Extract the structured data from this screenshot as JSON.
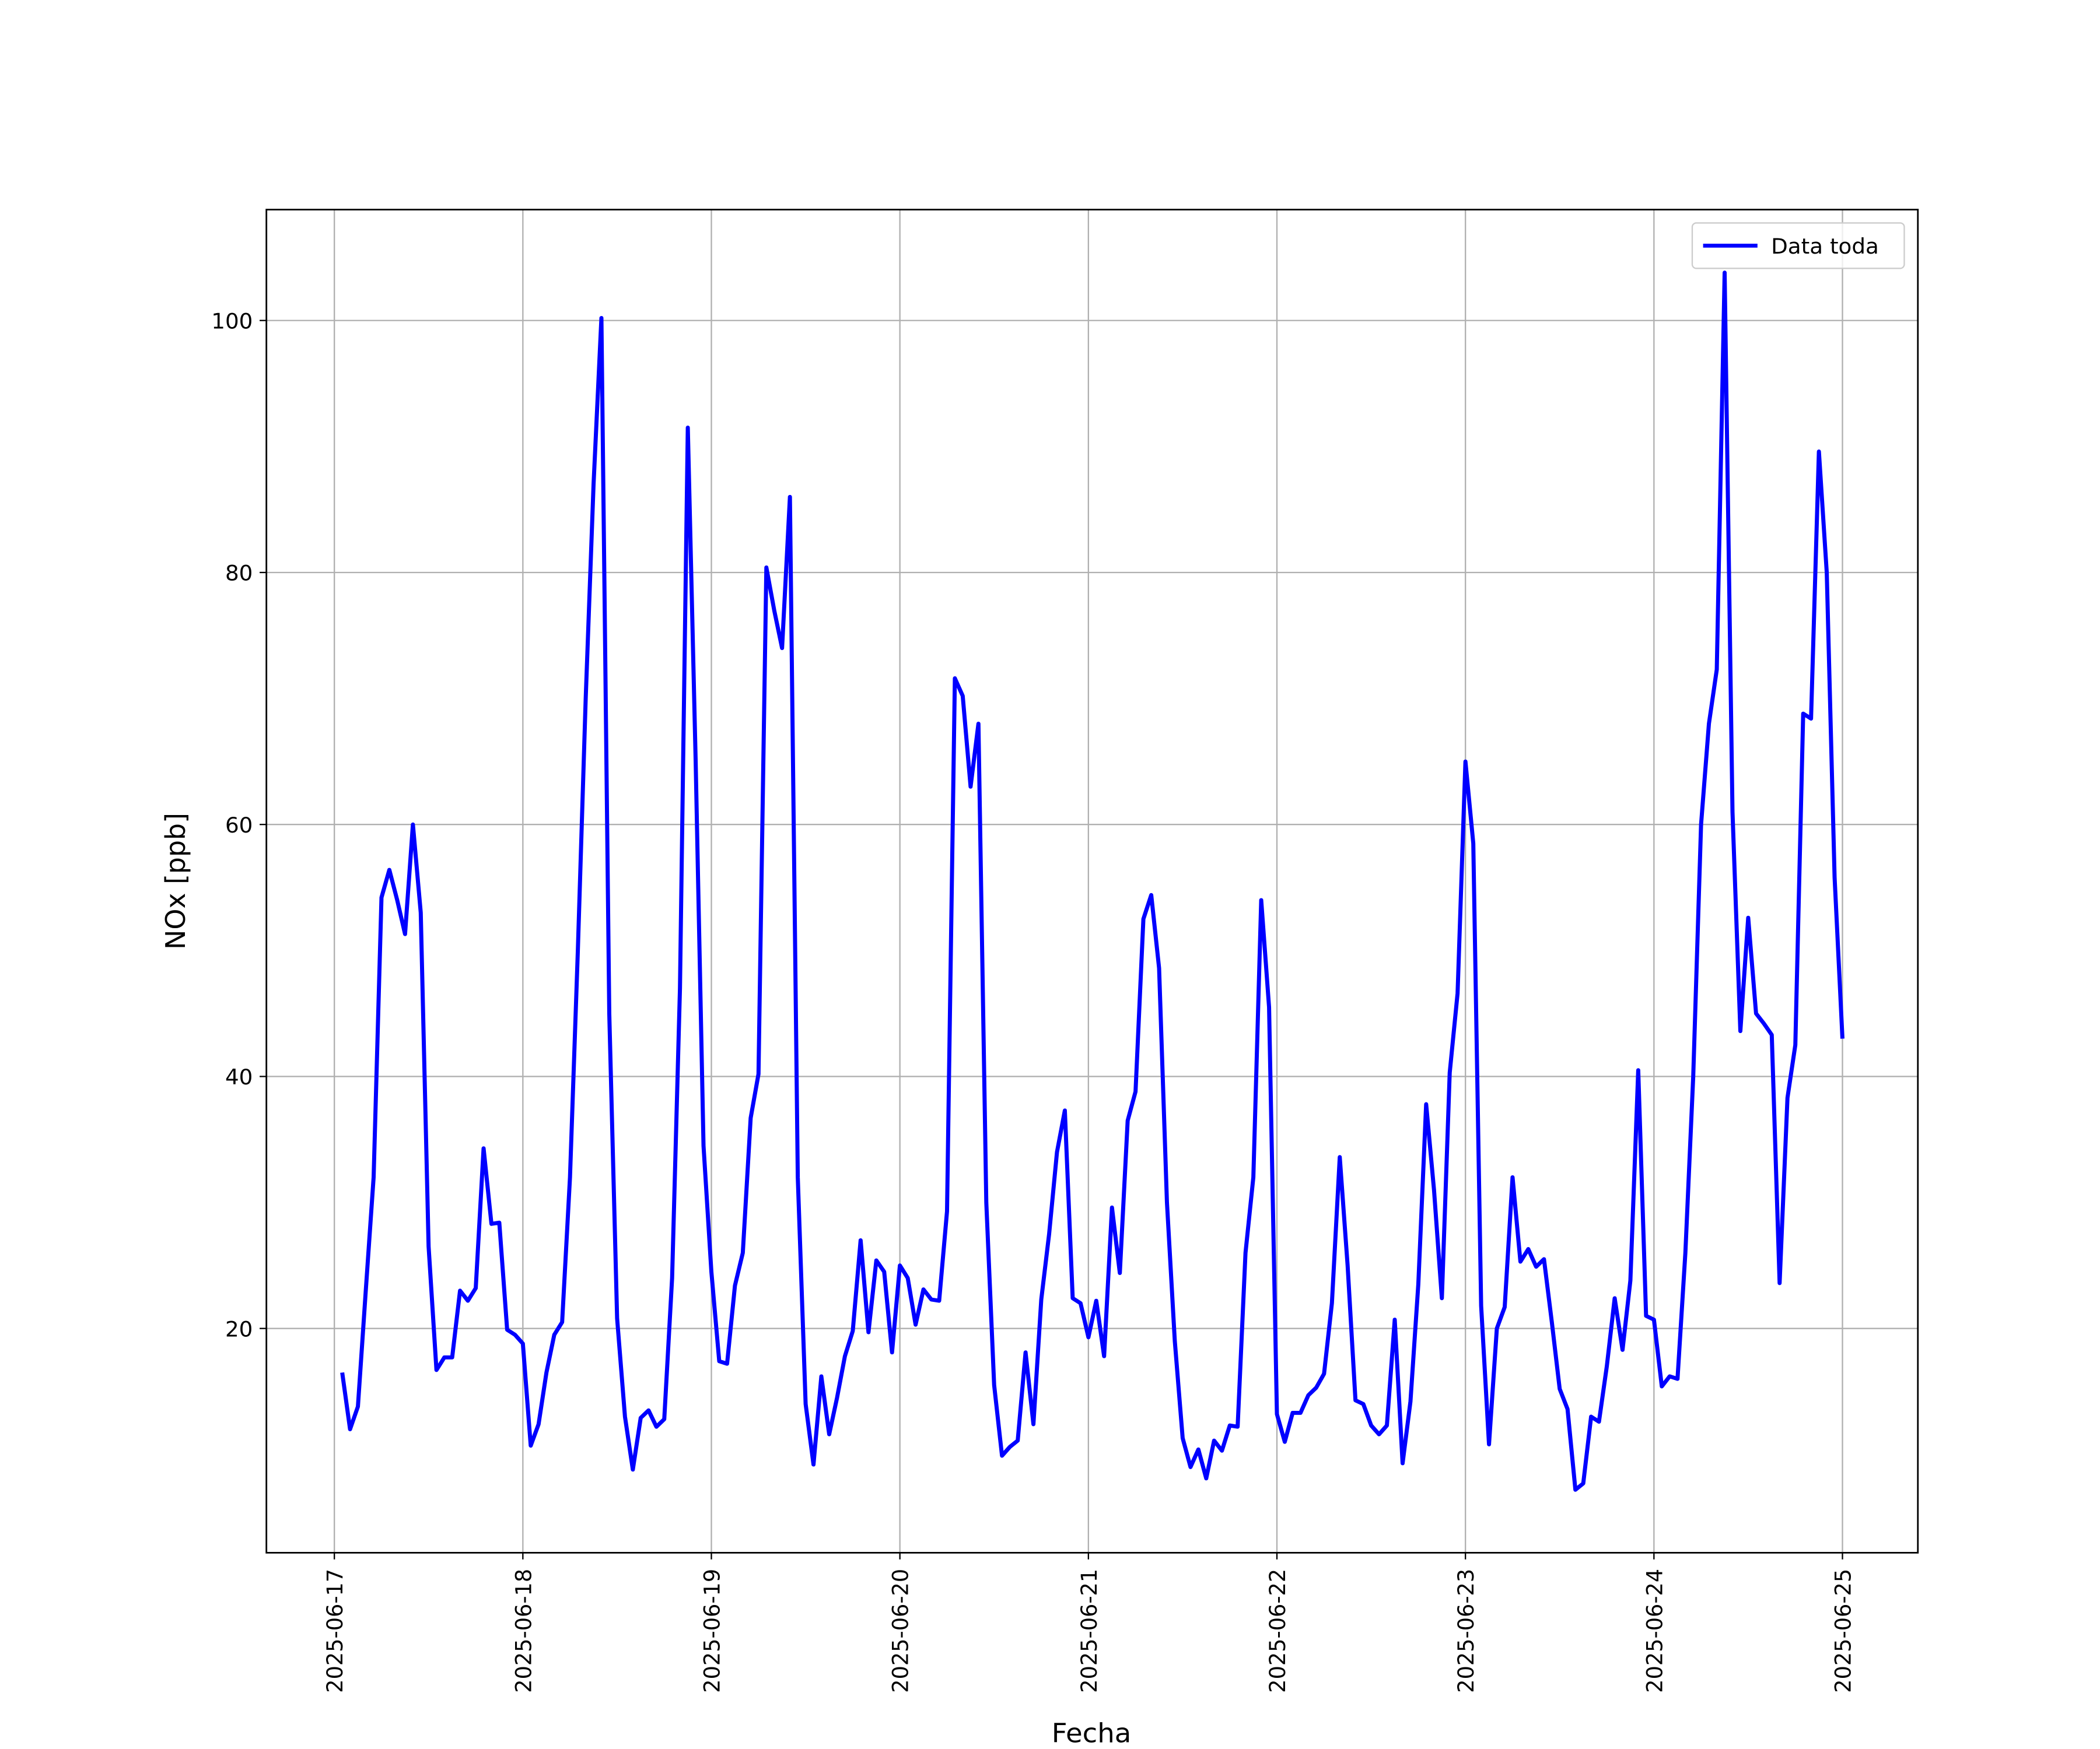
{
  "chart_data": {
    "type": "line",
    "x_label": "Fecha",
    "y_label": "NOx [ppb]",
    "legend": "upper right",
    "grid": true,
    "x": [
      "2025-06-17 01:00",
      "2025-06-17 02:00",
      "2025-06-17 03:00",
      "2025-06-17 04:00",
      "2025-06-17 05:00",
      "2025-06-17 06:00",
      "2025-06-17 07:00",
      "2025-06-17 08:00",
      "2025-06-17 09:00",
      "2025-06-17 10:00",
      "2025-06-17 11:00",
      "2025-06-17 12:00",
      "2025-06-17 13:00",
      "2025-06-17 14:00",
      "2025-06-17 15:00",
      "2025-06-17 16:00",
      "2025-06-17 17:00",
      "2025-06-17 18:00",
      "2025-06-17 19:00",
      "2025-06-17 20:00",
      "2025-06-17 21:00",
      "2025-06-17 22:00",
      "2025-06-17 23:00",
      "2025-06-18 00:00",
      "2025-06-18 01:00",
      "2025-06-18 02:00",
      "2025-06-18 03:00",
      "2025-06-18 04:00",
      "2025-06-18 05:00",
      "2025-06-18 06:00",
      "2025-06-18 07:00",
      "2025-06-18 08:00",
      "2025-06-18 09:00",
      "2025-06-18 10:00",
      "2025-06-18 11:00",
      "2025-06-18 12:00",
      "2025-06-18 13:00",
      "2025-06-18 14:00",
      "2025-06-18 15:00",
      "2025-06-18 16:00",
      "2025-06-18 17:00",
      "2025-06-18 18:00",
      "2025-06-18 19:00",
      "2025-06-18 20:00",
      "2025-06-18 21:00",
      "2025-06-18 22:00",
      "2025-06-18 23:00",
      "2025-06-19 00:00",
      "2025-06-19 01:00",
      "2025-06-19 02:00",
      "2025-06-19 03:00",
      "2025-06-19 04:00",
      "2025-06-19 05:00",
      "2025-06-19 06:00",
      "2025-06-19 07:00",
      "2025-06-19 08:00",
      "2025-06-19 09:00",
      "2025-06-19 10:00",
      "2025-06-19 11:00",
      "2025-06-19 12:00",
      "2025-06-19 13:00",
      "2025-06-19 14:00",
      "2025-06-19 15:00",
      "2025-06-19 16:00",
      "2025-06-19 17:00",
      "2025-06-19 18:00",
      "2025-06-19 19:00",
      "2025-06-19 20:00",
      "2025-06-19 21:00",
      "2025-06-19 22:00",
      "2025-06-19 23:00",
      "2025-06-20 00:00",
      "2025-06-20 01:00",
      "2025-06-20 02:00",
      "2025-06-20 03:00",
      "2025-06-20 04:00",
      "2025-06-20 05:00",
      "2025-06-20 06:00",
      "2025-06-20 07:00",
      "2025-06-20 08:00",
      "2025-06-20 09:00",
      "2025-06-20 10:00",
      "2025-06-20 11:00",
      "2025-06-20 12:00",
      "2025-06-20 13:00",
      "2025-06-20 14:00",
      "2025-06-20 15:00",
      "2025-06-20 16:00",
      "2025-06-20 17:00",
      "2025-06-20 18:00",
      "2025-06-20 19:00",
      "2025-06-20 20:00",
      "2025-06-20 21:00",
      "2025-06-20 22:00",
      "2025-06-20 23:00",
      "2025-06-21 00:00",
      "2025-06-21 01:00",
      "2025-06-21 02:00",
      "2025-06-21 03:00",
      "2025-06-21 04:00",
      "2025-06-21 05:00",
      "2025-06-21 06:00",
      "2025-06-21 07:00",
      "2025-06-21 08:00",
      "2025-06-21 09:00",
      "2025-06-21 10:00",
      "2025-06-21 11:00",
      "2025-06-21 12:00",
      "2025-06-21 13:00",
      "2025-06-21 14:00",
      "2025-06-21 15:00",
      "2025-06-21 16:00",
      "2025-06-21 17:00",
      "2025-06-21 18:00",
      "2025-06-21 19:00",
      "2025-06-21 20:00",
      "2025-06-21 21:00",
      "2025-06-21 22:00",
      "2025-06-21 23:00",
      "2025-06-22 00:00",
      "2025-06-22 01:00",
      "2025-06-22 02:00",
      "2025-06-22 03:00",
      "2025-06-22 04:00",
      "2025-06-22 05:00",
      "2025-06-22 06:00",
      "2025-06-22 07:00",
      "2025-06-22 08:00",
      "2025-06-22 09:00",
      "2025-06-22 10:00",
      "2025-06-22 11:00",
      "2025-06-22 12:00",
      "2025-06-22 13:00",
      "2025-06-22 14:00",
      "2025-06-22 15:00",
      "2025-06-22 16:00",
      "2025-06-22 17:00",
      "2025-06-22 18:00",
      "2025-06-22 19:00",
      "2025-06-22 20:00",
      "2025-06-22 21:00",
      "2025-06-22 22:00",
      "2025-06-22 23:00",
      "2025-06-23 00:00",
      "2025-06-23 01:00",
      "2025-06-23 02:00",
      "2025-06-23 03:00",
      "2025-06-23 04:00",
      "2025-06-23 05:00",
      "2025-06-23 06:00",
      "2025-06-23 07:00",
      "2025-06-23 08:00",
      "2025-06-23 09:00",
      "2025-06-23 10:00",
      "2025-06-23 11:00",
      "2025-06-23 12:00",
      "2025-06-23 13:00",
      "2025-06-23 14:00",
      "2025-06-23 15:00",
      "2025-06-23 16:00",
      "2025-06-23 17:00",
      "2025-06-23 18:00",
      "2025-06-23 19:00",
      "2025-06-23 20:00",
      "2025-06-23 21:00",
      "2025-06-23 22:00",
      "2025-06-23 23:00",
      "2025-06-24 00:00",
      "2025-06-24 01:00",
      "2025-06-24 02:00",
      "2025-06-24 03:00",
      "2025-06-24 04:00",
      "2025-06-24 05:00",
      "2025-06-24 06:00",
      "2025-06-24 07:00",
      "2025-06-24 08:00",
      "2025-06-24 09:00",
      "2025-06-24 10:00",
      "2025-06-24 11:00",
      "2025-06-24 12:00",
      "2025-06-24 13:00",
      "2025-06-24 14:00",
      "2025-06-24 15:00",
      "2025-06-24 16:00",
      "2025-06-24 17:00",
      "2025-06-24 18:00",
      "2025-06-24 19:00",
      "2025-06-24 20:00",
      "2025-06-24 21:00",
      "2025-06-24 22:00",
      "2025-06-24 23:00",
      "2025-06-25 00:00"
    ],
    "series": [
      {
        "name": "Data toda",
        "color": "#0000ff",
        "values": [
          16.5,
          12,
          13.8,
          23,
          32,
          54.2,
          56.4,
          54,
          51.3,
          60,
          53,
          26.5,
          16.7,
          17.7,
          17.7,
          23,
          22.2,
          23.2,
          34.3,
          28.3,
          28.4,
          19.9,
          19.5,
          18.8,
          10.7,
          12.4,
          16.5,
          19.5,
          20.5,
          32,
          50,
          70,
          87,
          100.2,
          45,
          20.8,
          13,
          8.8,
          12.9,
          13.5,
          12.2,
          12.8,
          24,
          47,
          91.5,
          65,
          34.5,
          24.5,
          17.4,
          17.2,
          23.4,
          26,
          36.7,
          40.2,
          80.4,
          77,
          74,
          86,
          32,
          14,
          9.2,
          16.2,
          11.6,
          14.5,
          17.8,
          19.8,
          27,
          19.7,
          25.4,
          24.5,
          18.1,
          25,
          24,
          20.3,
          23.1,
          22.3,
          22.2,
          29.3,
          71.6,
          70.2,
          63,
          68,
          30,
          15.5,
          9.9,
          10.6,
          11.1,
          18.1,
          12.4,
          22.3,
          27.5,
          34,
          37.3,
          22.4,
          22,
          19.3,
          22.2,
          17.8,
          29.6,
          24.4,
          36.5,
          38.8,
          52.5,
          54.4,
          48.6,
          30,
          19,
          11.3,
          9,
          10.4,
          8.1,
          11.1,
          10.3,
          12.3,
          12.2,
          26,
          32,
          54,
          45.5,
          13.2,
          11,
          13.3,
          13.3,
          14.7,
          15.3,
          16.4,
          22,
          33.6,
          25,
          14.3,
          14,
          12.3,
          11.6,
          12.3,
          20.7,
          9.3,
          14.2,
          23.5,
          37.8,
          31,
          22.4,
          40.3,
          46.6,
          65,
          58.5,
          21.8,
          10.8,
          20,
          21.7,
          32,
          25.3,
          26.3,
          24.9,
          25.5,
          20.5,
          15.2,
          13.6,
          7.2,
          7.7,
          13,
          12.6,
          17,
          22.4,
          18.3,
          23.8,
          40.5,
          21,
          20.7,
          15.4,
          16.2,
          16,
          26,
          40,
          60,
          68,
          72.3,
          103.8,
          61,
          43.6,
          52.6,
          45,
          44.2,
          43.3,
          23.6,
          38.3,
          42.5,
          68.8,
          68.4,
          89.6,
          80,
          55.8,
          43
        ]
      }
    ],
    "xlim": [
      "2025-06-16 15:21",
      "2025-06-25 09:36"
    ],
    "xticks": [
      "2025-06-17",
      "2025-06-18",
      "2025-06-19",
      "2025-06-20",
      "2025-06-21",
      "2025-06-22",
      "2025-06-23",
      "2025-06-24",
      "2025-06-25"
    ],
    "ylim": [
      2.2,
      108.8
    ],
    "yticks": [
      20,
      40,
      60,
      80,
      100
    ]
  }
}
